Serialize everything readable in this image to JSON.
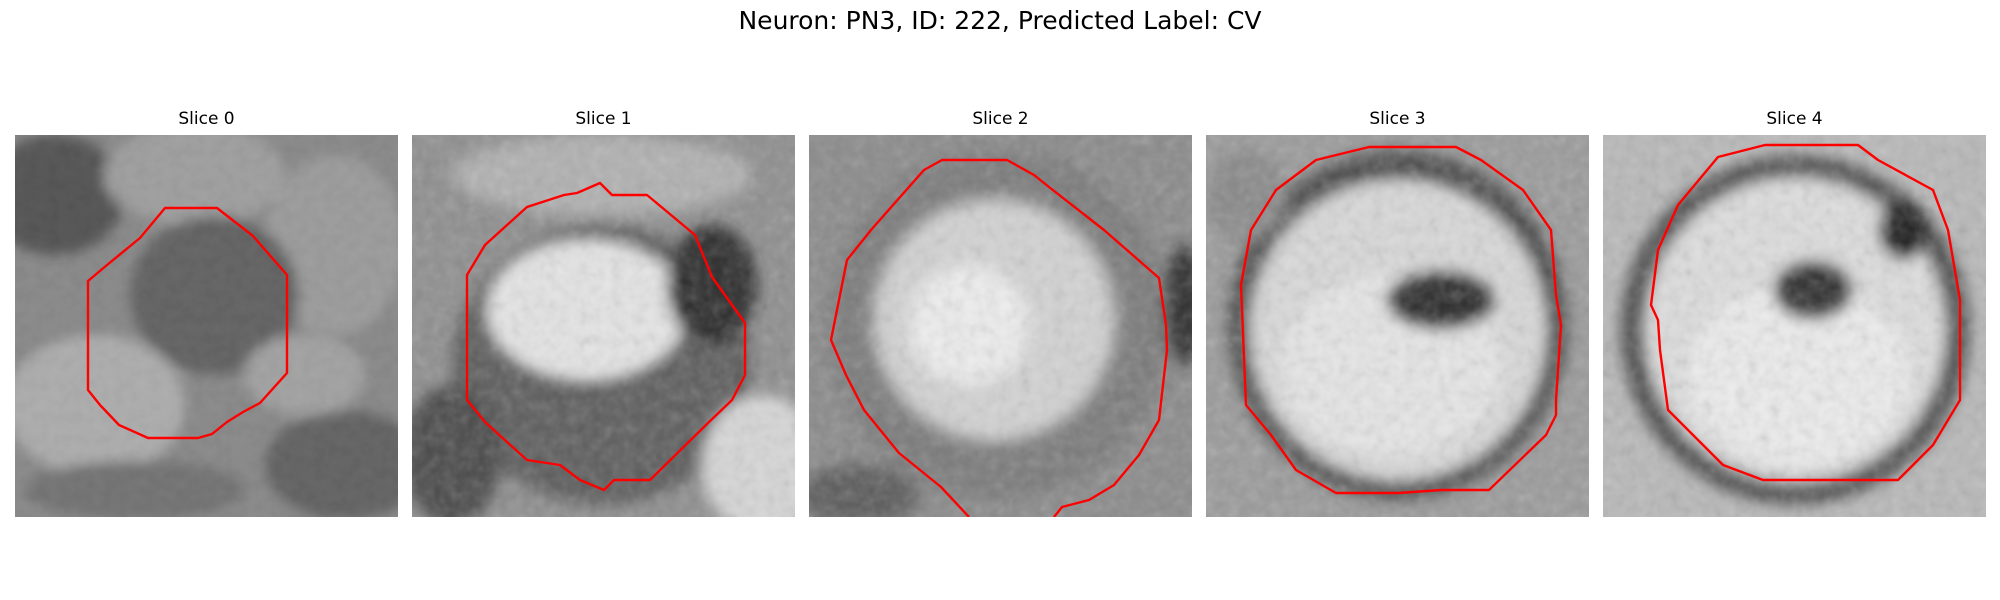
{
  "figure": {
    "title": "Neuron: PN3, ID: 222, Predicted Label: CV"
  },
  "panels": [
    {
      "title": "Slice 0",
      "contour_color": "#ff0000"
    },
    {
      "title": "Slice 1",
      "contour_color": "#ff0000"
    },
    {
      "title": "Slice 2",
      "contour_color": "#ff0000"
    },
    {
      "title": "Slice 3",
      "contour_color": "#ff0000"
    },
    {
      "title": "Slice 4",
      "contour_color": "#ff0000"
    }
  ]
}
